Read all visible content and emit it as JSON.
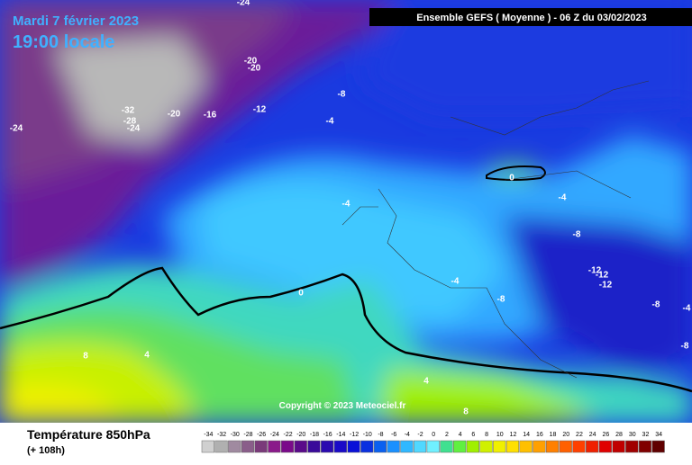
{
  "header": {
    "date": "Mardi 7 février 2023",
    "time": "19:00 locale",
    "run": "Ensemble GEFS  ( Moyenne )  -  06 Z du 03/02/2023"
  },
  "footer": {
    "title": "Température 850hPa",
    "subtitle": "(+ 108h)",
    "copyright": "Copyright © 2023 Meteociel.fr"
  },
  "legend": {
    "values": [
      -34,
      -32,
      -30,
      -28,
      -26,
      -24,
      -22,
      -20,
      -18,
      -16,
      -14,
      -12,
      -10,
      -8,
      -6,
      -4,
      -2,
      0,
      2,
      4,
      6,
      8,
      10,
      12,
      14,
      16,
      18,
      20,
      22,
      24,
      26,
      28,
      30,
      32,
      34
    ],
    "colors": [
      "#d0d0d0",
      "#b0b0b0",
      "#a08aa0",
      "#8a5e8a",
      "#7a3a7a",
      "#8a1a8a",
      "#7a0a8a",
      "#5a0a8a",
      "#3a0a9a",
      "#2a0ab0",
      "#1a0ac8",
      "#0a10d8",
      "#0a30e0",
      "#0a60f0",
      "#1a90ff",
      "#30b8ff",
      "#50d8ff",
      "#70f0ff",
      "#40e090",
      "#60f040",
      "#a0f000",
      "#d0f000",
      "#f0f000",
      "#ffe000",
      "#ffc000",
      "#ffa000",
      "#ff8000",
      "#ff6000",
      "#ff4000",
      "#f02000",
      "#e00000",
      "#c00000",
      "#a00000",
      "#800000",
      "#600000"
    ]
  },
  "contour_labels": [
    -24,
    -20,
    -20,
    -32,
    -28,
    -24,
    -20,
    -16,
    -12,
    -8,
    -4,
    -24,
    0,
    -4,
    -4,
    -8,
    -12,
    -12,
    -12,
    -4,
    -8,
    -8,
    -4,
    -8,
    0,
    8,
    4,
    4,
    8
  ]
}
